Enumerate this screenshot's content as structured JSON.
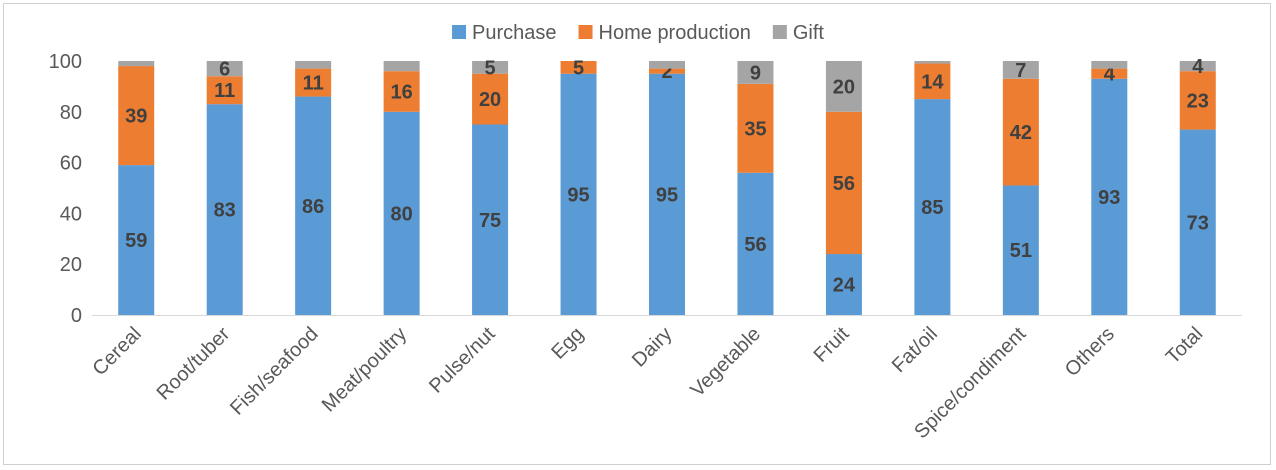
{
  "chart_data": {
    "type": "bar",
    "stacked": true,
    "title": "",
    "xlabel": "",
    "ylabel": "",
    "ylim": [
      0,
      100
    ],
    "yticks": [
      0,
      20,
      40,
      60,
      80,
      100
    ],
    "grid": false,
    "legend_position": "top",
    "categories": [
      "Cereal",
      "Root/tuber",
      "Fish/seafood",
      "Meat/poultry",
      "Pulse/nut",
      "Egg",
      "Dairy",
      "Vegetable",
      "Fruit",
      "Fat/oil",
      "Spice/condiment",
      "Others",
      "Total"
    ],
    "series": [
      {
        "name": "Purchase",
        "color": "#5b9bd5",
        "values": [
          59,
          83,
          86,
          80,
          75,
          95,
          95,
          56,
          24,
          85,
          51,
          93,
          73
        ],
        "labels": [
          "59",
          "83",
          "86",
          "80",
          "75",
          "95",
          "95",
          "56",
          "24",
          "85",
          "51",
          "93",
          "73"
        ]
      },
      {
        "name": "Home production",
        "color": "#ed7d31",
        "values": [
          39,
          11,
          11,
          16,
          20,
          5,
          2,
          35,
          56,
          14,
          42,
          4,
          23
        ],
        "labels": [
          "39",
          "11",
          "11",
          "16",
          "20",
          "5",
          "2",
          "35",
          "56",
          "14",
          "42",
          "4",
          "23"
        ]
      },
      {
        "name": "Gift",
        "color": "#a5a5a5",
        "values": [
          2,
          6,
          3,
          4,
          5,
          0,
          3,
          9,
          20,
          1,
          7,
          3,
          4
        ],
        "labels": [
          "",
          "6",
          "",
          "",
          "5",
          "",
          "",
          "9",
          "20",
          "",
          "7",
          "",
          "4"
        ]
      }
    ]
  }
}
